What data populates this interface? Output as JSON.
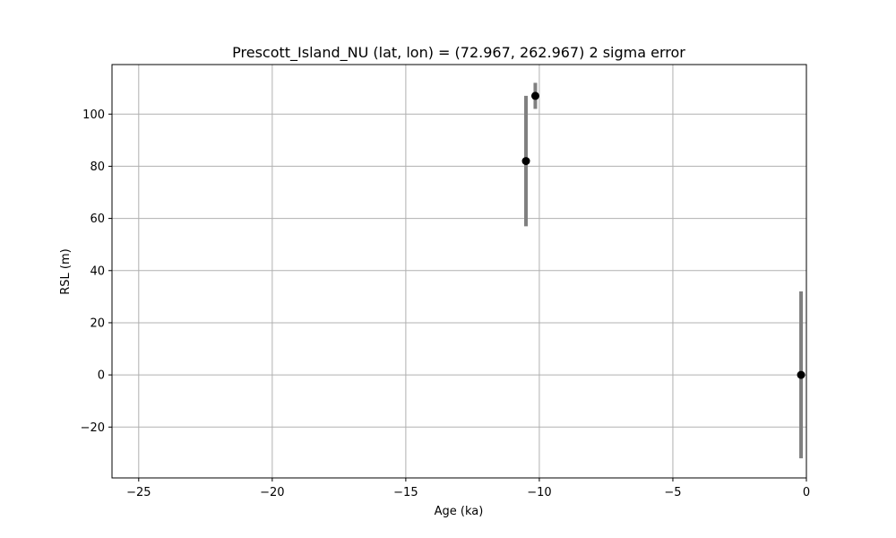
{
  "chart_data": {
    "type": "scatter",
    "title": "Prescott_Island_NU (lat, lon) = (72.967, 262.967)  2 sigma error",
    "xlabel": "Age (ka)",
    "ylabel": "RSL (m)",
    "xlim": [
      -26,
      0
    ],
    "ylim": [
      -39.5,
      119
    ],
    "xticks": [
      -25,
      -20,
      -15,
      -10,
      -5,
      0
    ],
    "xtick_labels": [
      "−25",
      "−20",
      "−15",
      "−10",
      "−5",
      "0"
    ],
    "yticks": [
      -20,
      0,
      20,
      40,
      60,
      80,
      100
    ],
    "ytick_labels": [
      "−20",
      "0",
      "20",
      "40",
      "60",
      "80",
      "100"
    ],
    "grid": true,
    "series": [
      {
        "points": [
          {
            "x": -10.5,
            "y": 82,
            "err": 25
          },
          {
            "x": -10.15,
            "y": 107,
            "err": 5
          },
          {
            "x": -0.2,
            "y": 0,
            "err": 32
          }
        ]
      }
    ],
    "colors": {
      "marker": "#000000",
      "errorbar": "#808080",
      "grid": "#b0b0b0"
    }
  }
}
